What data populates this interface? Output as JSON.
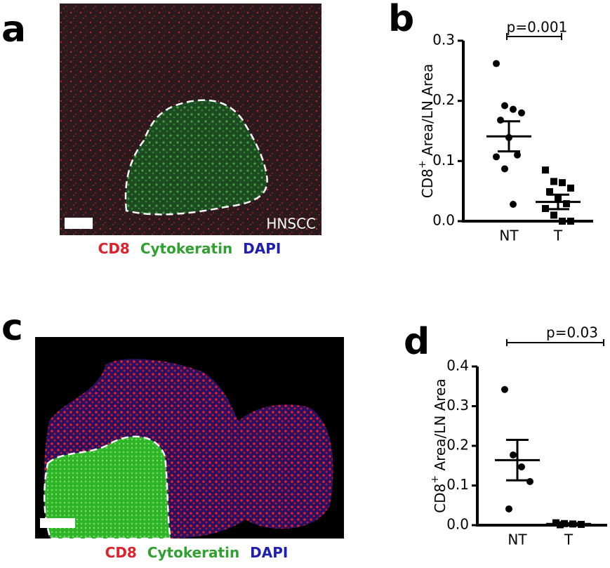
{
  "images": [
    {
      "label": "a",
      "caption": [
        "CD8",
        "Cytokeratin",
        "DAPI"
      ],
      "annotation": "HNSCC"
    },
    {
      "label": "c",
      "caption": [
        "CD8",
        "Cytokeratin",
        "DAPI"
      ]
    }
  ],
  "chart_data": [
    {
      "type": "dotplot",
      "label": "b",
      "ylabel": [
        "CD8",
        "+",
        " Area/LN Area"
      ],
      "categories": [
        "NT",
        "T"
      ],
      "points": [
        [
          0.262,
          0.192,
          0.186,
          0.18,
          0.168,
          0.139,
          0.11,
          0.107,
          0.087,
          0.028
        ],
        [
          0.085,
          0.066,
          0.064,
          0.055,
          0.049,
          0.037,
          0.029,
          0.021,
          0.01,
          0.0,
          0.0
        ]
      ],
      "markers": [
        "circle",
        "square"
      ],
      "means": [
        0.141,
        0.032
      ],
      "errors": [
        0.025,
        0.012
      ],
      "ylim": [
        0,
        0.3
      ],
      "yticks": [
        {
          "value": 0,
          "label": "0.0"
        },
        0.1,
        0.2,
        0.3
      ],
      "annotation": "p=0.001"
    },
    {
      "type": "dotplot",
      "label": "d",
      "ylabel": [
        "CD8",
        "+",
        " Area/LN Area"
      ],
      "categories": [
        "NT",
        "T"
      ],
      "points": [
        [
          0.342,
          0.177,
          0.147,
          0.11,
          0.041
        ],
        [
          0.006,
          0.004,
          0.003,
          0.002,
          0.001
        ]
      ],
      "markers": [
        "circle",
        "square"
      ],
      "means": [
        0.164,
        0.003
      ],
      "errors": [
        0.051,
        0.002
      ],
      "ylim": [
        0,
        0.4
      ],
      "yticks": [
        {
          "value": 0,
          "label": "0.0"
        },
        0.1,
        0.2,
        0.3,
        0.4
      ],
      "annotation": "p=0.03"
    }
  ]
}
